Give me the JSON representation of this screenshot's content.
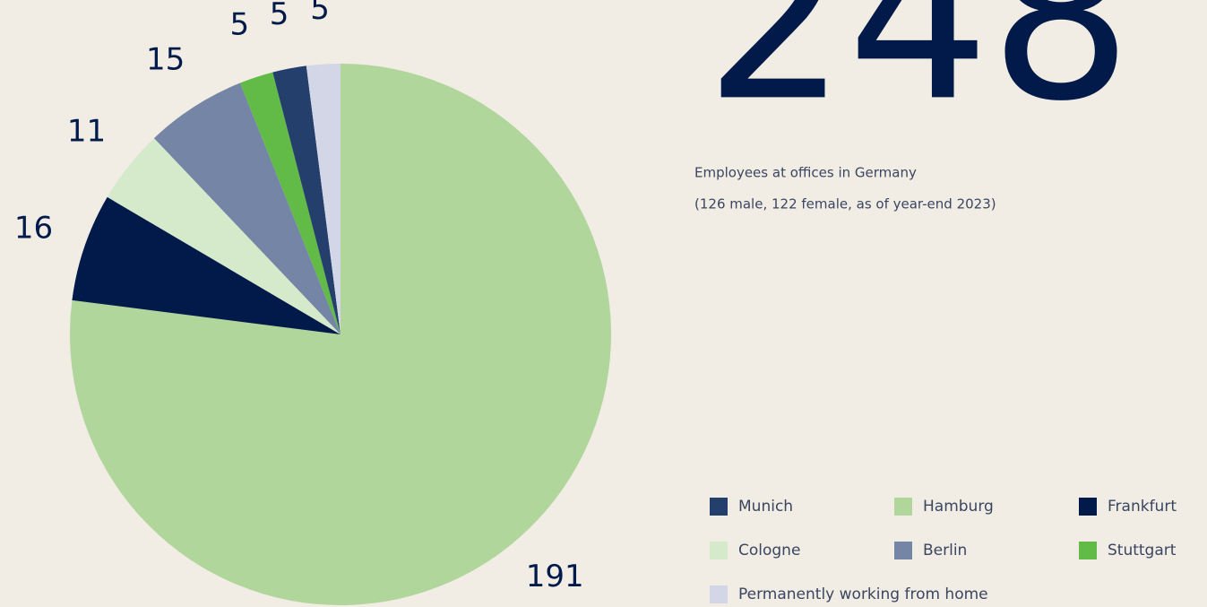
{
  "chart_data": {
    "type": "pie",
    "title": "248",
    "subtitle": [
      "Employees at offices in Germany",
      "(126 male, 122 female, as of year-end 2023)"
    ],
    "categories": [
      "Hamburg",
      "Frankfurt",
      "Cologne",
      "Berlin",
      "Stuttgart",
      "Munich",
      "Permanently working from home"
    ],
    "values": [
      191,
      16,
      11,
      15,
      5,
      5,
      5
    ],
    "colors": [
      "#b0d69c",
      "#011a4a",
      "#d5eacb",
      "#7585a6",
      "#62bb47",
      "#243f6b",
      "#d3d6e6"
    ]
  }
}
